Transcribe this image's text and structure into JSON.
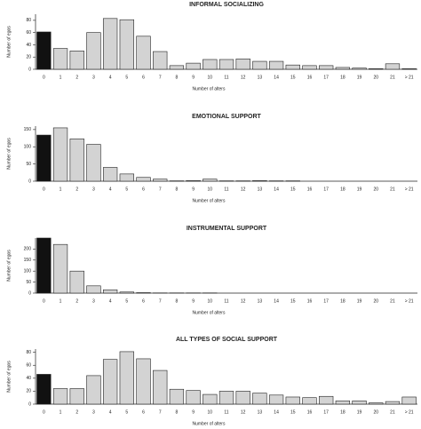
{
  "chart_data": [
    {
      "type": "bar",
      "title": "INFORMAL SOCIALIZING",
      "x_label": "Number of alters",
      "y_label": "Number of egos",
      "categories": [
        "0",
        "1",
        "2",
        "3",
        "4",
        "5",
        "6",
        "7",
        "8",
        "9",
        "10",
        "11",
        "12",
        "13",
        "14",
        "15",
        "16",
        "17",
        "18",
        "19",
        "20",
        "21",
        "> 21"
      ],
      "values": [
        61,
        34,
        30,
        60,
        83,
        81,
        54,
        29,
        6,
        10,
        16,
        16,
        17,
        13,
        13,
        7,
        6,
        6,
        3,
        2,
        1,
        9,
        1
      ],
      "colors": [
        "#111111",
        "#d3d3d3",
        "#d3d3d3",
        "#d3d3d3",
        "#d3d3d3",
        "#d3d3d3",
        "#d3d3d3",
        "#d3d3d3",
        "#d3d3d3",
        "#d3d3d3",
        "#d3d3d3",
        "#d3d3d3",
        "#d3d3d3",
        "#d3d3d3",
        "#d3d3d3",
        "#d3d3d3",
        "#d3d3d3",
        "#d3d3d3",
        "#d3d3d3",
        "#d3d3d3",
        "#d3d3d3",
        "#d3d3d3",
        "#d3d3d3"
      ],
      "ylim": [
        0,
        90
      ],
      "yticks": [
        0,
        20,
        40,
        60,
        80
      ]
    },
    {
      "type": "bar",
      "title": "EMOTIONAL SUPPORT",
      "x_label": "Number of alters",
      "y_label": "Number of egos",
      "categories": [
        "0",
        "1",
        "2",
        "3",
        "4",
        "5",
        "6",
        "7",
        "8",
        "9",
        "10",
        "11",
        "12",
        "13",
        "14",
        "15",
        "16",
        "17",
        "18",
        "19",
        "20",
        "21",
        "> 21"
      ],
      "values": [
        134,
        155,
        123,
        107,
        40,
        21,
        11,
        6,
        1,
        2,
        6,
        1,
        1,
        2,
        1,
        1,
        0,
        0,
        0,
        0,
        0,
        0,
        0
      ],
      "colors": [
        "#111111",
        "#d3d3d3",
        "#d3d3d3",
        "#d3d3d3",
        "#d3d3d3",
        "#d3d3d3",
        "#d3d3d3",
        "#d3d3d3",
        "#d3d3d3",
        "#d3d3d3",
        "#d3d3d3",
        "#d3d3d3",
        "#d3d3d3",
        "#d3d3d3",
        "#d3d3d3",
        "#d3d3d3",
        "#d3d3d3",
        "#d3d3d3",
        "#d3d3d3",
        "#d3d3d3",
        "#d3d3d3",
        "#d3d3d3",
        "#d3d3d3"
      ],
      "ylim": [
        0,
        160
      ],
      "yticks": [
        0,
        50,
        100,
        150
      ]
    },
    {
      "type": "bar",
      "title": "INSTRUMENTAL SUPPORT",
      "x_label": "Number of alters",
      "y_label": "Number of egos",
      "categories": [
        "0",
        "1",
        "2",
        "3",
        "4",
        "5",
        "6",
        "7",
        "8",
        "9",
        "10",
        "11",
        "12",
        "13",
        "14",
        "15",
        "16",
        "17",
        "18",
        "19",
        "20",
        "21",
        "> 21"
      ],
      "values": [
        250,
        221,
        100,
        33,
        15,
        5,
        2,
        1,
        1,
        1,
        1,
        0,
        0,
        0,
        0,
        0,
        0,
        0,
        0,
        0,
        0,
        0,
        0
      ],
      "colors": [
        "#111111",
        "#d3d3d3",
        "#d3d3d3",
        "#d3d3d3",
        "#d3d3d3",
        "#d3d3d3",
        "#d3d3d3",
        "#d3d3d3",
        "#d3d3d3",
        "#d3d3d3",
        "#d3d3d3",
        "#d3d3d3",
        "#d3d3d3",
        "#d3d3d3",
        "#d3d3d3",
        "#d3d3d3",
        "#d3d3d3",
        "#d3d3d3",
        "#d3d3d3",
        "#d3d3d3",
        "#d3d3d3",
        "#d3d3d3",
        "#d3d3d3"
      ],
      "ylim": [
        0,
        250
      ],
      "yticks": [
        0,
        50,
        100,
        150,
        200
      ]
    },
    {
      "type": "bar",
      "title": "ALL TYPES OF SOCIAL SUPPORT",
      "x_label": "Number of alters",
      "y_label": "Number of egos",
      "categories": [
        "0",
        "1",
        "2",
        "3",
        "4",
        "5",
        "6",
        "7",
        "8",
        "9",
        "10",
        "11",
        "12",
        "13",
        "14",
        "15",
        "16",
        "17",
        "18",
        "19",
        "20",
        "21",
        "> 21"
      ],
      "values": [
        46,
        24,
        24,
        44,
        69,
        81,
        70,
        52,
        23,
        21,
        15,
        20,
        20,
        17,
        14,
        11,
        10,
        12,
        5,
        5,
        2,
        4,
        11
      ],
      "colors": [
        "#111111",
        "#d3d3d3",
        "#d3d3d3",
        "#d3d3d3",
        "#d3d3d3",
        "#d3d3d3",
        "#d3d3d3",
        "#d3d3d3",
        "#d3d3d3",
        "#d3d3d3",
        "#d3d3d3",
        "#d3d3d3",
        "#d3d3d3",
        "#d3d3d3",
        "#d3d3d3",
        "#d3d3d3",
        "#d3d3d3",
        "#d3d3d3",
        "#d3d3d3",
        "#d3d3d3",
        "#d3d3d3",
        "#d3d3d3",
        "#d3d3d3"
      ],
      "ylim": [
        0,
        85
      ],
      "yticks": [
        0,
        20,
        40,
        60,
        80
      ]
    }
  ]
}
